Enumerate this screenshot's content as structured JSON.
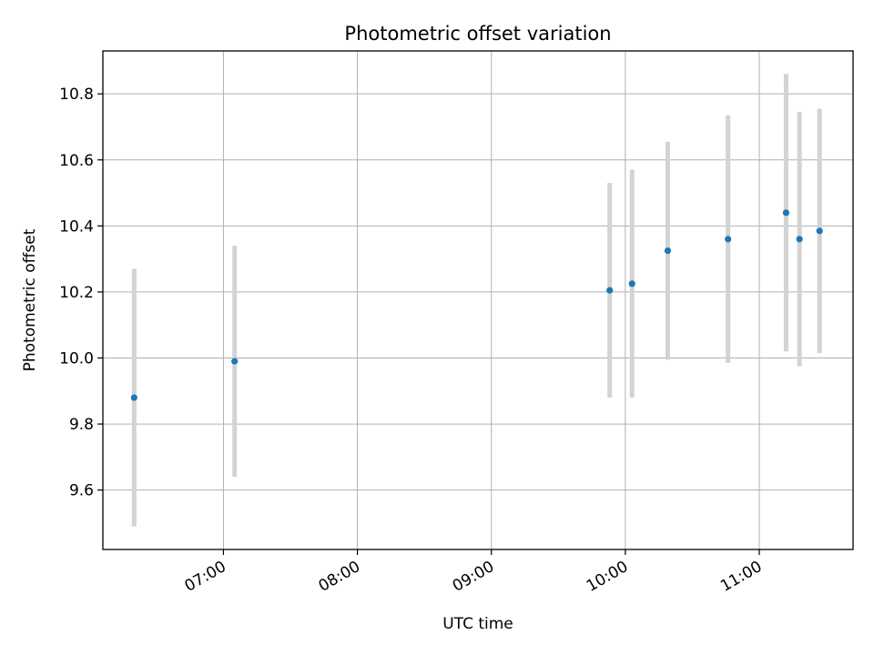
{
  "chart_data": {
    "type": "scatter",
    "title": "Photometric offset variation",
    "xlabel": "UTC time",
    "ylabel": "Photometric offset",
    "xlim": [
      "06:06",
      "11:42"
    ],
    "ylim": [
      9.42,
      10.93
    ],
    "grid": true,
    "legend": "none",
    "x_ticks": [
      "07:00",
      "08:00",
      "09:00",
      "10:00",
      "11:00"
    ],
    "y_ticks": [
      9.6,
      9.8,
      10.0,
      10.2,
      10.4,
      10.6,
      10.8
    ],
    "points": [
      {
        "x": "06:20",
        "y": 9.88,
        "yerr": 0.39
      },
      {
        "x": "07:05",
        "y": 9.99,
        "yerr": 0.35
      },
      {
        "x": "09:53",
        "y": 10.205,
        "yerr": 0.325
      },
      {
        "x": "10:03",
        "y": 10.225,
        "yerr": 0.345
      },
      {
        "x": "10:19",
        "y": 10.325,
        "yerr": 0.33
      },
      {
        "x": "10:46",
        "y": 10.36,
        "yerr": 0.375
      },
      {
        "x": "11:12",
        "y": 10.44,
        "yerr": 0.42
      },
      {
        "x": "11:18",
        "y": 10.36,
        "yerr": 0.385
      },
      {
        "x": "11:27",
        "y": 10.385,
        "yerr": 0.37
      }
    ],
    "colors": {
      "marker": "#1f77b4",
      "errorbar": "#d3d3d3",
      "grid": "#b0b0b0"
    }
  }
}
